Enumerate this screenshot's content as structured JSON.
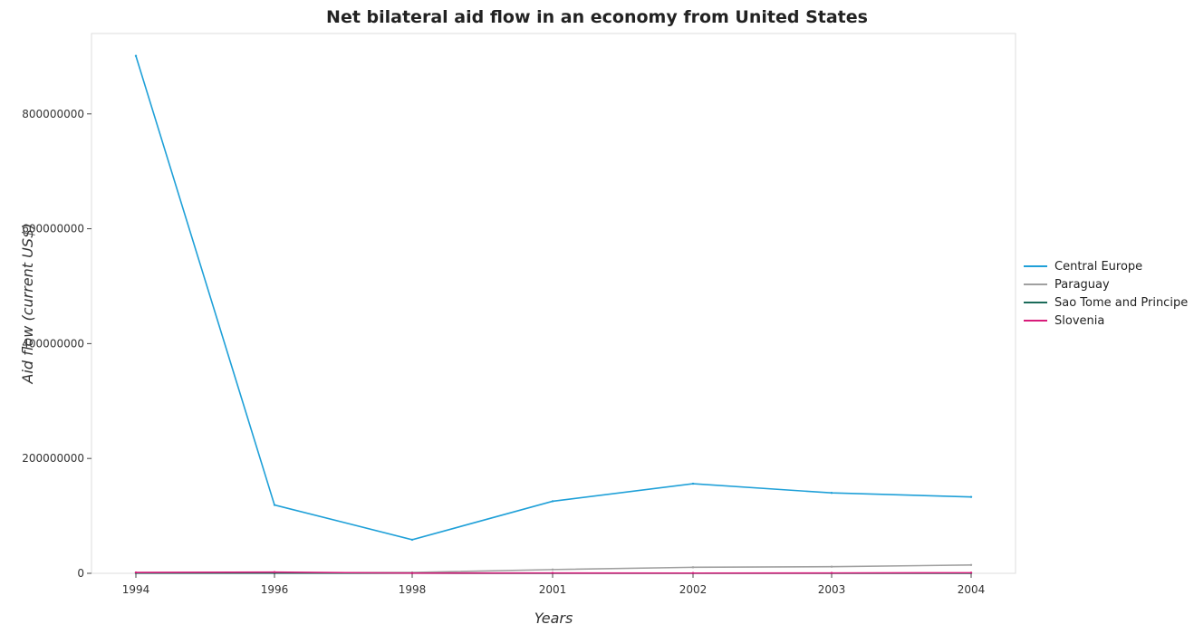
{
  "title": "Net bilateral aid flow in an economy from United States",
  "xlabel": "Years",
  "ylabel": "Aid flow (current US$)",
  "chart_data": {
    "type": "line",
    "title": "Net bilateral aid flow in an economy from United States",
    "xlabel": "Years",
    "ylabel": "Aid flow (current US$)",
    "categories": [
      "1994",
      "1996",
      "1998",
      "2001",
      "2002",
      "2003",
      "2004"
    ],
    "ylim": [
      0,
      940000000
    ],
    "yticks": [
      0,
      200000000,
      400000000,
      600000000,
      800000000
    ],
    "ytick_labels": [
      "0",
      "200000000",
      "400000000",
      "600000000",
      "800000000"
    ],
    "grid": false,
    "legend_position": "right",
    "series": [
      {
        "name": "Central Europe",
        "color": "#1fa0d8",
        "values": [
          901000000,
          119000000,
          58500000,
          125500000,
          156000000,
          140000000,
          133000000
        ]
      },
      {
        "name": "Paraguay",
        "color": "#a0a0a0",
        "values": [
          800000,
          500000,
          1500000,
          6500000,
          10500000,
          11500000,
          14500000
        ]
      },
      {
        "name": "Sao Tome and Principe",
        "color": "#1b6b5a",
        "values": [
          300000,
          200000,
          200000,
          100000,
          100000,
          100000,
          100000
        ]
      },
      {
        "name": "Slovenia",
        "color": "#d81b7a",
        "values": [
          1500000,
          2000000,
          400000,
          600000,
          400000,
          600000,
          1000000
        ]
      }
    ]
  }
}
